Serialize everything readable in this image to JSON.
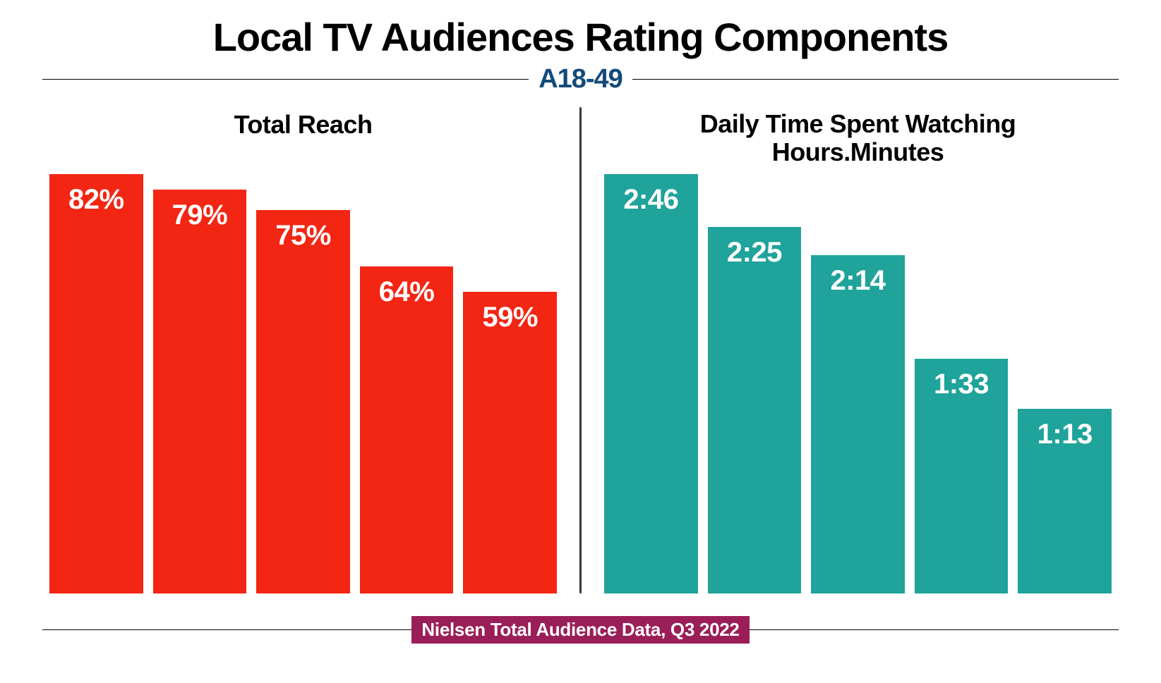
{
  "title": "Local TV Audiences Rating Components",
  "title_fontsize": 56,
  "title_color": "#000000",
  "subtitle": "A18-49",
  "subtitle_fontsize": 38,
  "subtitle_color": "#134a7a",
  "rule_color": "#000000",
  "background_color": "#ffffff",
  "divider_color": "#262626",
  "left_chart": {
    "type": "bar",
    "title": "Total Reach",
    "title_fontsize": 36,
    "bar_color": "#f22613",
    "label_color": "#ffffff",
    "label_fontsize": 40,
    "max_value": 82,
    "bars": [
      {
        "label": "82%",
        "value": 82
      },
      {
        "label": "79%",
        "value": 79
      },
      {
        "label": "75%",
        "value": 75
      },
      {
        "label": "64%",
        "value": 64
      },
      {
        "label": "59%",
        "value": 59
      }
    ]
  },
  "right_chart": {
    "type": "bar",
    "title_line1": "Daily Time Spent Watching",
    "title_line2": "Hours.Minutes",
    "title_fontsize": 36,
    "bar_color": "#1fa39a",
    "label_color": "#ffffff",
    "label_fontsize": 40,
    "max_value": 166,
    "bars": [
      {
        "label": "2:46",
        "value": 166
      },
      {
        "label": "2:25",
        "value": 145
      },
      {
        "label": "2:14",
        "value": 134
      },
      {
        "label": "1:33",
        "value": 93
      },
      {
        "label": "1:13",
        "value": 73
      }
    ]
  },
  "footer": {
    "text": "Nielsen Total Audience Data, Q3 2022",
    "fontsize": 26,
    "badge_bg": "#9a1e57",
    "badge_color": "#ffffff"
  }
}
